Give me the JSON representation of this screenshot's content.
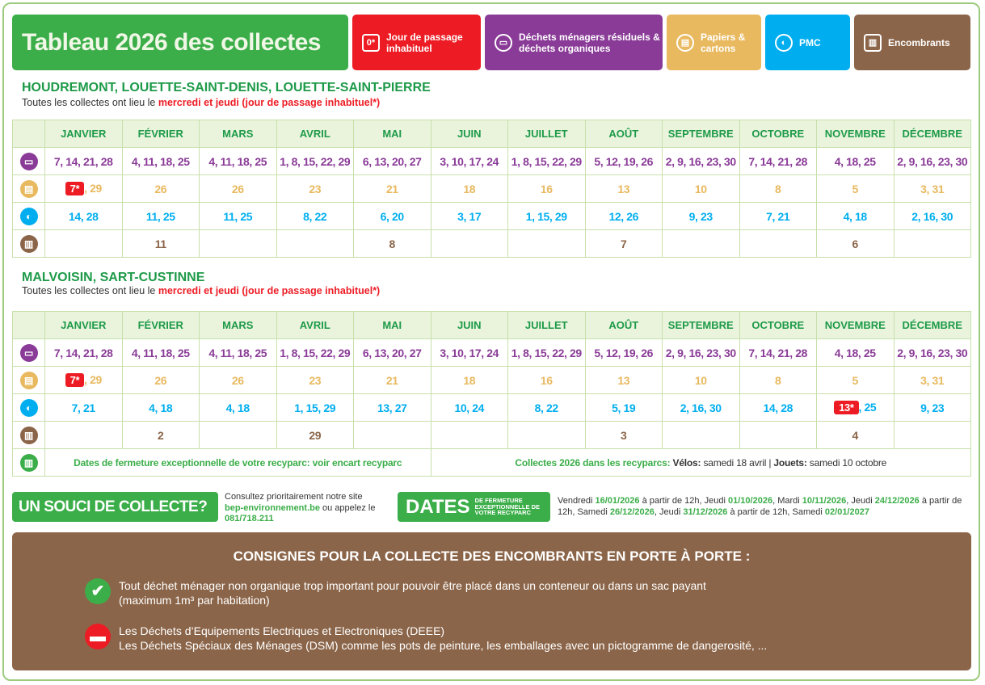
{
  "header": {
    "title": "Tableau 2026 des collectes"
  },
  "legend": [
    {
      "label": "Jour de passage inhabituel",
      "icon": "0*",
      "color": "#ed1c24"
    },
    {
      "label": "Déchets ménagers résiduels & déchets organiques",
      "icon": "bin-icon",
      "color": "#8a3b97"
    },
    {
      "label": "Papiers & cartons",
      "icon": "paper-icon",
      "color": "#e8b95f"
    },
    {
      "label": "PMC",
      "icon": "pmc-icon",
      "color": "#00aeef"
    },
    {
      "label": "Encombrants",
      "icon": "bulky-icon",
      "color": "#8b6549"
    }
  ],
  "months": [
    "JANVIER",
    "FÉVRIER",
    "MARS",
    "AVRIL",
    "MAI",
    "JUIN",
    "JUILLET",
    "AOÛT",
    "SEPTEMBRE",
    "OCTOBRE",
    "NOVEMBRE",
    "DÉCEMBRE"
  ],
  "sections": [
    {
      "title": "HOUDREMONT, LOUETTE-SAINT-DENIS, LOUETTE-SAINT-PIERRE",
      "subtitle_prefix": "Toutes les collectes ont lieu le ",
      "subtitle_highlight": "mercredi et jeudi (jour de passage inhabituel*)",
      "rows": [
        {
          "type": "residuels",
          "color": "#8a3b97",
          "cells": [
            "7, 14, 21, 28",
            "4, 11, 18, 25",
            "4, 11, 18, 25",
            "1, 8, 15, 22, 29",
            "6, 13, 20, 27",
            "3, 10, 17, 24",
            "1, 8, 15, 22, 29",
            "5, 12, 19, 26",
            "2, 9, 16, 23, 30",
            "7, 14, 21, 28",
            "4, 18, 25",
            "2, 9, 16, 23, 30"
          ]
        },
        {
          "type": "papiers",
          "color": "#e8b95f",
          "cells": [
            {
              "badge": "7*",
              "rest": ", 29"
            },
            "26",
            "26",
            "23",
            "21",
            "18",
            "16",
            "13",
            "10",
            "8",
            "5",
            "3, 31"
          ]
        },
        {
          "type": "pmc",
          "color": "#00aeef",
          "cells": [
            "14, 28",
            "11, 25",
            "11, 25",
            "8, 22",
            "6, 20",
            "3, 17",
            "1, 15, 29",
            "12, 26",
            "9, 23",
            "7, 21",
            "4, 18",
            "2, 16, 30"
          ]
        },
        {
          "type": "encombrants",
          "color": "#8b6549",
          "cells": [
            "",
            "11",
            "",
            "",
            "8",
            "",
            "",
            "7",
            "",
            "",
            "6",
            ""
          ]
        }
      ]
    },
    {
      "title": "MALVOISIN, SART-CUSTINNE",
      "subtitle_prefix": "Toutes les collectes ont lieu le ",
      "subtitle_highlight": "mercredi et jeudi (jour de passage inhabituel*)",
      "rows": [
        {
          "type": "residuels",
          "color": "#8a3b97",
          "cells": [
            "7, 14, 21, 28",
            "4, 11, 18, 25",
            "4, 11, 18, 25",
            "1, 8, 15, 22, 29",
            "6, 13, 20, 27",
            "3, 10, 17, 24",
            "1, 8, 15, 22, 29",
            "5, 12, 19, 26",
            "2, 9, 16, 23, 30",
            "7, 14, 21, 28",
            "4, 18, 25",
            "2, 9, 16, 23, 30"
          ]
        },
        {
          "type": "papiers",
          "color": "#e8b95f",
          "cells": [
            {
              "badge": "7*",
              "rest": ", 29"
            },
            "26",
            "26",
            "23",
            "21",
            "18",
            "16",
            "13",
            "10",
            "8",
            "5",
            "3, 31"
          ]
        },
        {
          "type": "pmc",
          "color": "#00aeef",
          "cells": [
            "7, 21",
            "4, 18",
            "4, 18",
            "1, 15, 29",
            "13, 27",
            "10, 24",
            "8, 22",
            "5, 19",
            "2, 16, 30",
            "14, 28",
            {
              "badge": "13*",
              "rest": ", 25"
            },
            "9, 23"
          ]
        },
        {
          "type": "encombrants",
          "color": "#8b6549",
          "cells": [
            "",
            "2",
            "",
            "29",
            "",
            "",
            "",
            "3",
            "",
            "",
            "4",
            ""
          ]
        }
      ]
    }
  ],
  "recyparc": {
    "left_text": "Dates de fermeture exceptionnelle de votre recyparc: ",
    "left_link": "voir encart recyparc",
    "right_label": "Collectes 2026 dans les recyparcs:",
    "velos_label": "Vélos:",
    "velos_date": "samedi 18 avril",
    "sep": "|",
    "jouets_label": "Jouets:",
    "jouets_date": "samedi 10 octobre"
  },
  "footer": {
    "souci": "UN SOUCI DE COLLECTE?",
    "contact_1": "Consultez prioritairement notre site",
    "website": "bep-environnement.be",
    "contact_2": " ou appelez le ",
    "phone": "081/718.211",
    "dates_big": "DATES",
    "dates_small": "DE FERMETURE EXCEPTIONNELLE DE VOTRE RECYPARC",
    "closures": [
      {
        "pre": "Vendredi ",
        "date": "16/01/2026",
        "post": " à partir de 12h, "
      },
      {
        "pre": "Jeudi ",
        "date": "01/10/2026",
        "post": ", "
      },
      {
        "pre": "Mardi ",
        "date": "10/11/2026",
        "post": ", "
      },
      {
        "pre": "Jeudi ",
        "date": "24/12/2026",
        "post": " à partir de 12h, "
      },
      {
        "pre": "Samedi ",
        "date": "26/12/2026",
        "post": ", "
      },
      {
        "pre": "Jeudi ",
        "date": "31/12/2026",
        "post": " à partir de 12h, "
      },
      {
        "pre": "Samedi ",
        "date": "02/01/2027",
        "post": ""
      }
    ]
  },
  "consignes": {
    "title": "CONSIGNES POUR LA COLLECTE DES ENCOMBRANTS EN PORTE À PORTE :",
    "allowed": "Tout déchet ménager non organique trop important pour pouvoir être placé dans un conteneur ou dans un sac payant",
    "allowed_2": "(maximum 1m³ par habitation)",
    "forbidden_1": "Les Déchets d’Equipements Electriques et Electroniques (DEEE)",
    "forbidden_2": "Les Déchets Spéciaux des Ménages (DSM) comme les pots de peinture, les emballages avec un pictogramme de dangerosité, ..."
  }
}
